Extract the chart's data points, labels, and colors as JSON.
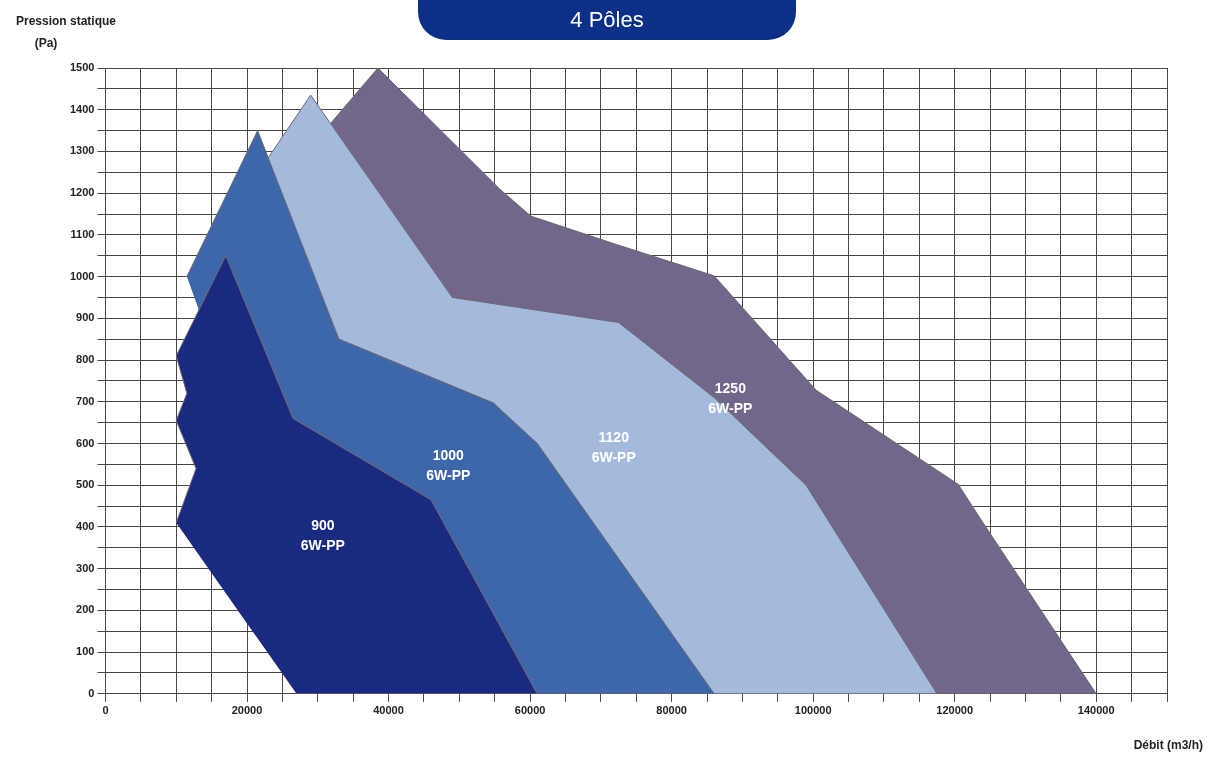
{
  "chart_data": {
    "type": "area",
    "title": "4 Pôles",
    "xlabel": "Débit (m3/h)",
    "ylabel": "Pression statique (Pa)",
    "xlim": [
      0,
      150000
    ],
    "ylim": [
      0,
      1500
    ],
    "xticks": [
      0,
      {
        "value": 5000,
        "label": null
      },
      {
        "value": 10000,
        "label": null
      },
      {
        "value": 15000,
        "label": null
      },
      20000,
      {
        "value": 25000,
        "label": null
      },
      {
        "value": 30000,
        "label": null
      },
      {
        "value": 35000,
        "label": null
      },
      40000,
      {
        "value": 45000,
        "label": null
      },
      {
        "value": 50000,
        "label": null
      },
      {
        "value": 55000,
        "label": null
      },
      60000,
      {
        "value": 65000,
        "label": null
      },
      {
        "value": 70000,
        "label": null
      },
      {
        "value": 75000,
        "label": null
      },
      80000,
      {
        "value": 85000,
        "label": null
      },
      {
        "value": 90000,
        "label": null
      },
      {
        "value": 95000,
        "label": null
      },
      100000,
      {
        "value": 105000,
        "label": null
      },
      {
        "value": 110000,
        "label": null
      },
      {
        "value": 115000,
        "label": null
      },
      120000,
      {
        "value": 125000,
        "label": null
      },
      {
        "value": 130000,
        "label": null
      },
      {
        "value": 135000,
        "label": null
      },
      140000,
      {
        "value": 145000,
        "label": null
      },
      {
        "value": 150000,
        "label": null
      }
    ],
    "yticks": [
      0,
      {
        "value": 50,
        "label": null
      },
      100,
      {
        "value": 150,
        "label": null
      },
      200,
      {
        "value": 250,
        "label": null
      },
      300,
      {
        "value": 350,
        "label": null
      },
      400,
      {
        "value": 450,
        "label": null
      },
      500,
      {
        "value": 550,
        "label": null
      },
      600,
      {
        "value": 650,
        "label": null
      },
      700,
      {
        "value": 750,
        "label": null
      },
      800,
      {
        "value": 850,
        "label": null
      },
      900,
      {
        "value": 950,
        "label": null
      },
      1000,
      {
        "value": 1050,
        "label": null
      },
      1100,
      {
        "value": 1150,
        "label": null
      },
      1200,
      {
        "value": 1250,
        "label": null
      },
      1300,
      {
        "value": 1350,
        "label": null
      },
      1400,
      {
        "value": 1450,
        "label": null
      },
      1500
    ],
    "grid": true,
    "legend": false,
    "series": [
      {
        "name": "900 6W-PP",
        "color": "#1a2a80",
        "x": [
          10000,
          12800,
          10000,
          11500,
          10000,
          17000,
          26500,
          46000,
          61000,
          27000
        ],
        "values": [
          410,
          540,
          655,
          720,
          810,
          1050,
          660,
          465,
          0,
          0
        ]
      },
      {
        "name": "1000 6W-PP",
        "color": "#3e66aa",
        "x": [
          11500,
          21500,
          33000,
          54800,
          61000,
          86000,
          61000,
          46000,
          26500,
          17000,
          13200
        ],
        "values": [
          1000,
          1350,
          850,
          697,
          600,
          0,
          0,
          465,
          660,
          1050,
          920
        ]
      },
      {
        "name": "1120 6W-PP",
        "color": "#a3badc",
        "x": [
          23000,
          29000,
          49000,
          72500,
          86000,
          99000,
          117500,
          86000,
          61000,
          54800,
          33000
        ],
        "values": [
          1285,
          1435,
          950,
          890,
          710,
          500,
          0,
          0,
          600,
          697,
          850
        ]
      },
      {
        "name": "1250 6W-PP",
        "color": "#72668a",
        "x": [
          31800,
          38500,
          55700,
          60100,
          72200,
          86000,
          100400,
          120500,
          124000,
          140000,
          117500,
          99000,
          86000,
          72500,
          49000
        ],
        "values": [
          1367,
          1500,
          1210,
          1145,
          1077,
          1002,
          728,
          502,
          410,
          0,
          0,
          500,
          710,
          890,
          950
        ]
      }
    ]
  }
}
